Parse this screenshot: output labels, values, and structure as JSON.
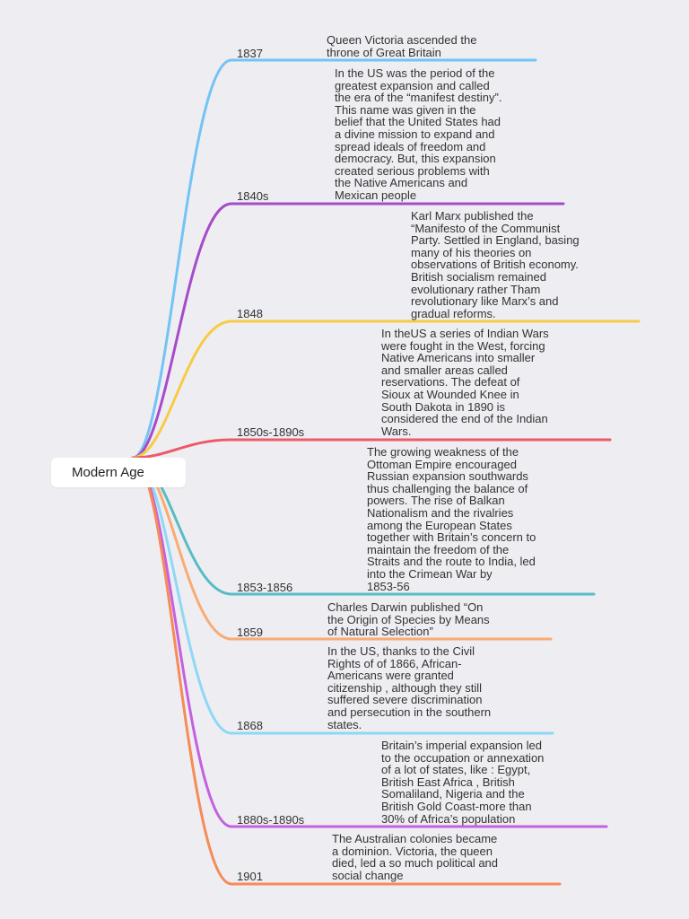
{
  "root": {
    "title": "Modern Age"
  },
  "events": [
    {
      "year": "1837",
      "color": "#74c3f5",
      "text": "Queen Victoria ascended the\nthrone of Great Britain"
    },
    {
      "year": "1840s",
      "color": "#a64bc9",
      "text": "In the US was the period of the\ngreatest expansion and called\nthe era of the “manifest destiny”.\nThis name was given in the\nbelief that the United States had\na divine mission to expand and\nspread ideals of freedom and\ndemocracy. But, this expansion\ncreated serious problems with\nthe Native Americans and\nMexican people"
    },
    {
      "year": "1848",
      "color": "#f7cb45",
      "text": "Karl Marx published the\n“Manifesto of the Communist\nParty. Settled in England, basing\nmany of his theories on\nobservations of British economy.\nBritish socialism remained\nevolutionary rather Tham\nrevolutionary like Marx’s and\ngradual reforms."
    },
    {
      "year": "1850s-1890s",
      "color": "#ec5a69",
      "text": "In theUS a series of Indian Wars\nwere fought in the West, forcing\nNative Americans into smaller\nand smaller areas called\nreservations. The defeat of\nSioux at Wounded Knee in\nSouth Dakota in 1890 is\nconsidered the end of the Indian\nWars."
    },
    {
      "year": "1853-1856",
      "color": "#58bcc4",
      "text": "The growing weakness of the\nOttoman Empire encouraged\nRussian expansion southwards\nthus challenging the balance of\npowers. The rise of Balkan\nNationalism and the rivalries\namong the European States\ntogether with Britain’s concern to\nmaintain the freedom of the\nStraits and the route to India, led\ninto the Crimean War by\n1853-56"
    },
    {
      "year": "1859",
      "color": "#f8ab72",
      "text": "Charles Darwin published “On\nthe Origin of Species by Means\nof Natural Selection”"
    },
    {
      "year": "1868",
      "color": "#8fd8f5",
      "text": "In the US, thanks to the Civil\nRights of of 1866,  African-\nAmericans were granted\ncitizenship , although they still\nsuffered severe discrimination\nand persecution in the southern\nstates."
    },
    {
      "year": "1880s-1890s",
      "color": "#c361e0",
      "text": "Britain’s imperial expansion led\nto the occupation or annexation\nof a lot of states, like : Egypt,\nBritish East Africa , British\nSomaliland, Nigeria and the\nBritish Gold Coast-more than\n30% of Africa’s population"
    },
    {
      "year": "1901",
      "color": "#f68b58",
      "text": "The Australian colonies became\na dominion. Victoria, the queen\ndied, led a so much political and\nsocial change"
    }
  ]
}
